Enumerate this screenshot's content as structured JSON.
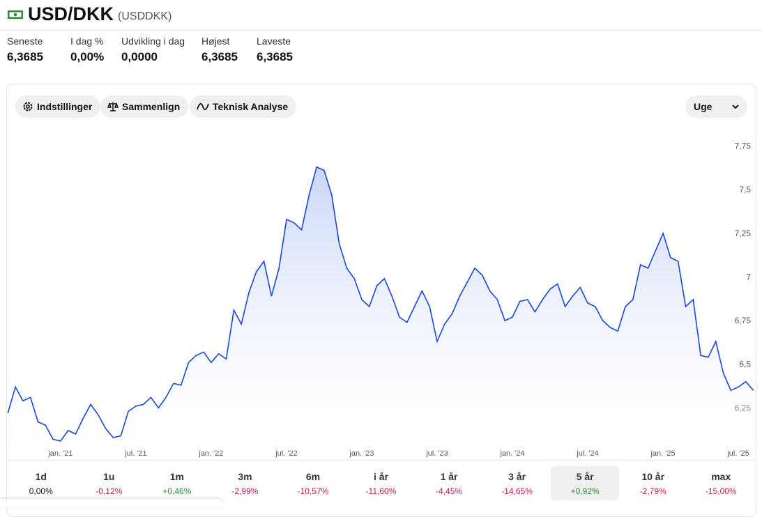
{
  "header": {
    "title": "USD/DKK",
    "symbol": "(USDDKK)"
  },
  "stats": [
    {
      "label": "Seneste",
      "value": "6,3685"
    },
    {
      "label": "I dag %",
      "value": "0,00%"
    },
    {
      "label": "Udvikling i dag",
      "value": "0,0000"
    },
    {
      "label": "Højest",
      "value": "6,3685"
    },
    {
      "label": "Laveste",
      "value": "6,3685"
    }
  ],
  "toolbar": {
    "buttons": [
      "Indstillinger",
      "Sammenlign",
      "Teknisk Analyse"
    ],
    "interval": "Uge"
  },
  "chart_data": {
    "type": "line",
    "color": "#1846d8",
    "x": [
      2020.65,
      2020.7,
      2020.75,
      2020.8,
      2020.85,
      2020.9,
      2020.95,
      2021,
      2021.05,
      2021.1,
      2021.15,
      2021.2,
      2021.25,
      2021.3,
      2021.35,
      2021.4,
      2021.45,
      2021.5,
      2021.55,
      2021.6,
      2021.65,
      2021.7,
      2021.75,
      2021.8,
      2021.85,
      2021.9,
      2021.95,
      2022,
      2022.05,
      2022.1,
      2022.15,
      2022.2,
      2022.25,
      2022.3,
      2022.35,
      2022.4,
      2022.45,
      2022.5,
      2022.55,
      2022.6,
      2022.65,
      2022.7,
      2022.75,
      2022.8,
      2022.85,
      2022.9,
      2022.95,
      2023,
      2023.05,
      2023.1,
      2023.15,
      2023.2,
      2023.25,
      2023.3,
      2023.35,
      2023.4,
      2023.45,
      2023.5,
      2023.55,
      2023.6,
      2023.65,
      2023.7,
      2023.75,
      2023.8,
      2023.85,
      2023.9,
      2023.95,
      2024,
      2024.05,
      2024.1,
      2024.15,
      2024.2,
      2024.25,
      2024.3,
      2024.35,
      2024.4,
      2024.45,
      2024.5,
      2024.55,
      2024.6,
      2024.65,
      2024.7,
      2024.75,
      2024.8,
      2024.85,
      2024.9,
      2024.95,
      2025,
      2025.05,
      2025.1,
      2025.15,
      2025.2,
      2025.25,
      2025.3,
      2025.35,
      2025.4,
      2025.45,
      2025.5,
      2025.55,
      2025.6
    ],
    "values": [
      6.22,
      6.37,
      6.29,
      6.31,
      6.17,
      6.15,
      6.07,
      6.06,
      6.12,
      6.1,
      6.19,
      6.27,
      6.21,
      6.13,
      6.08,
      6.09,
      6.23,
      6.26,
      6.27,
      6.31,
      6.25,
      6.31,
      6.39,
      6.38,
      6.51,
      6.55,
      6.57,
      6.51,
      6.56,
      6.53,
      6.81,
      6.73,
      6.91,
      7.03,
      7.09,
      6.89,
      7.05,
      7.33,
      7.31,
      7.27,
      7.47,
      7.63,
      7.61,
      7.47,
      7.19,
      7.05,
      6.99,
      6.87,
      6.83,
      6.95,
      6.99,
      6.89,
      6.77,
      6.74,
      6.83,
      6.92,
      6.83,
      6.63,
      6.73,
      6.79,
      6.89,
      6.97,
      7.05,
      7.01,
      6.92,
      6.87,
      6.75,
      6.77,
      6.86,
      6.87,
      6.8,
      6.87,
      6.93,
      6.96,
      6.83,
      6.89,
      6.94,
      6.85,
      6.83,
      6.75,
      6.71,
      6.69,
      6.83,
      6.87,
      7.07,
      7.05,
      7.15,
      7.25,
      7.11,
      7.09,
      6.83,
      6.87,
      6.55,
      6.54,
      6.63,
      6.45,
      6.35,
      6.37,
      6.4,
      6.35
    ],
    "xlim": [
      2020.644,
      2025.62
    ],
    "xticks": [
      {
        "value": 2021,
        "label": "jan. '21"
      },
      {
        "value": 2021.5,
        "label": "jul. '21"
      },
      {
        "value": 2022,
        "label": "jan. '22"
      },
      {
        "value": 2022.5,
        "label": "jul. '22"
      },
      {
        "value": 2023,
        "label": "jan. '23"
      },
      {
        "value": 2023.5,
        "label": "jul. '23"
      },
      {
        "value": 2024,
        "label": "jan. '24"
      },
      {
        "value": 2024.5,
        "label": "jul. '24"
      },
      {
        "value": 2025,
        "label": "jan. '25"
      },
      {
        "value": 2025.5,
        "label": "jul. '25"
      }
    ],
    "ylim": [
      6,
      7.8
    ],
    "yticks": [
      {
        "value": 6.25,
        "label": "6,25"
      },
      {
        "value": 6.5,
        "label": "6,5"
      },
      {
        "value": 6.75,
        "label": "6,75"
      },
      {
        "value": 7,
        "label": "7"
      },
      {
        "value": 7.25,
        "label": "7,25"
      },
      {
        "value": 7.5,
        "label": "7,5"
      },
      {
        "value": 7.75,
        "label": "7,75"
      }
    ]
  },
  "periods": [
    {
      "label": "1d",
      "change": "0,00%"
    },
    {
      "label": "1u",
      "change": "-0,12%"
    },
    {
      "label": "1m",
      "change": "+0,46%"
    },
    {
      "label": "3m",
      "change": "-2,99%"
    },
    {
      "label": "6m",
      "change": "-10,57%"
    },
    {
      "label": "i år",
      "change": "-11,60%"
    },
    {
      "label": "1 år",
      "change": "-4,45%"
    },
    {
      "label": "3 år",
      "change": "-14,65%"
    },
    {
      "label": "5 år",
      "change": "+0,92%"
    },
    {
      "label": "10 år",
      "change": "-2,79%"
    },
    {
      "label": "max",
      "change": "-15,00%"
    }
  ],
  "selected_period": 8
}
